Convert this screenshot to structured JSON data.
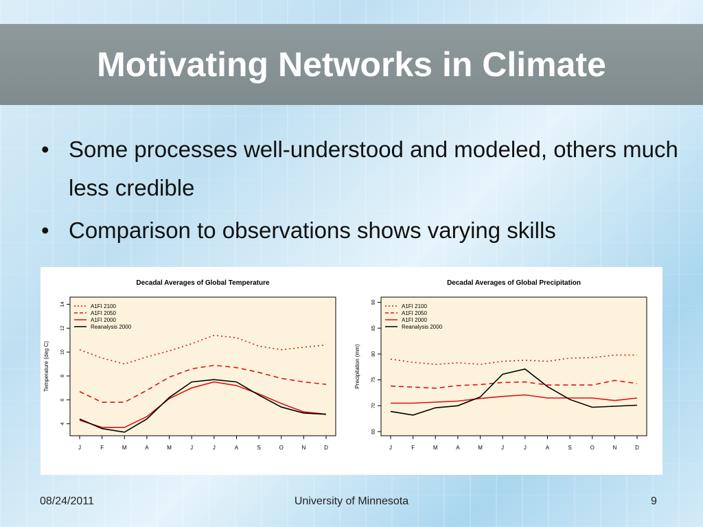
{
  "slide": {
    "title": "Motivating Networks in Climate",
    "bullets": [
      "Some processes well-understood and modeled, others much less credible",
      "Comparison to observations shows varying skills"
    ],
    "footer": {
      "date": "08/24/2011",
      "org": "University of Minnesota",
      "page": "9"
    }
  },
  "chart_data": [
    {
      "type": "line",
      "title": "Decadal Averages of Global Temperature",
      "xlabel": "",
      "ylabel": "Temperature (deg C)",
      "categories": [
        "J",
        "F",
        "M",
        "A",
        "M",
        "J",
        "J",
        "A",
        "S",
        "O",
        "N",
        "D"
      ],
      "ylim": [
        3,
        14.6
      ],
      "yticks": [
        4,
        6,
        8,
        10,
        12,
        14
      ],
      "legend_position": "top-left",
      "series": [
        {
          "name": "A1FI 2100",
          "style": "dotted",
          "color": "#e01010",
          "values": [
            10.2,
            9.5,
            9.0,
            9.6,
            10.1,
            10.7,
            11.4,
            11.2,
            10.5,
            10.2,
            10.4,
            10.6
          ]
        },
        {
          "name": "A1FI 2050",
          "style": "dashed",
          "color": "#e01010",
          "values": [
            6.7,
            5.8,
            5.8,
            6.8,
            7.9,
            8.6,
            8.9,
            8.7,
            8.3,
            7.8,
            7.5,
            7.3
          ]
        },
        {
          "name": "A1FI 2000",
          "style": "solid",
          "color": "#e01010",
          "values": [
            4.3,
            3.7,
            3.7,
            4.6,
            6.1,
            7.0,
            7.5,
            7.2,
            6.5,
            5.7,
            5.0,
            4.8
          ]
        },
        {
          "name": "Reanalysis 2000",
          "style": "solid",
          "color": "#000000",
          "values": [
            4.4,
            3.6,
            3.3,
            4.4,
            6.2,
            7.5,
            7.7,
            7.5,
            6.4,
            5.4,
            4.9,
            4.8
          ]
        }
      ]
    },
    {
      "type": "line",
      "title": "Decadal Averages of Global Precipitation",
      "xlabel": "",
      "ylabel": "Precipitation (mm)",
      "categories": [
        "J",
        "F",
        "M",
        "A",
        "M",
        "J",
        "J",
        "A",
        "S",
        "O",
        "N",
        "D"
      ],
      "ylim": [
        64.2,
        91
      ],
      "yticks": [
        65,
        70,
        75,
        80,
        85,
        90
      ],
      "legend_position": "top-left",
      "series": [
        {
          "name": "A1FI 2100",
          "style": "dotted",
          "color": "#e01010",
          "values": [
            79.0,
            78.4,
            78.0,
            78.3,
            78.0,
            78.6,
            78.8,
            78.6,
            79.2,
            79.3,
            79.8,
            79.8
          ]
        },
        {
          "name": "A1FI 2050",
          "style": "dashed",
          "color": "#e01010",
          "values": [
            73.8,
            73.6,
            73.4,
            73.9,
            74.1,
            74.5,
            74.6,
            74.0,
            74.0,
            74.0,
            74.9,
            74.3
          ]
        },
        {
          "name": "A1FI 2000",
          "style": "solid",
          "color": "#e01010",
          "values": [
            70.5,
            70.5,
            70.7,
            70.9,
            71.4,
            71.8,
            72.1,
            71.5,
            71.5,
            71.5,
            71.0,
            71.5
          ]
        },
        {
          "name": "Reanalysis 2000",
          "style": "solid",
          "color": "#000000",
          "values": [
            68.9,
            68.2,
            69.6,
            70.0,
            71.7,
            76.1,
            77.1,
            73.7,
            71.2,
            69.7,
            69.9,
            70.1
          ]
        }
      ]
    }
  ]
}
